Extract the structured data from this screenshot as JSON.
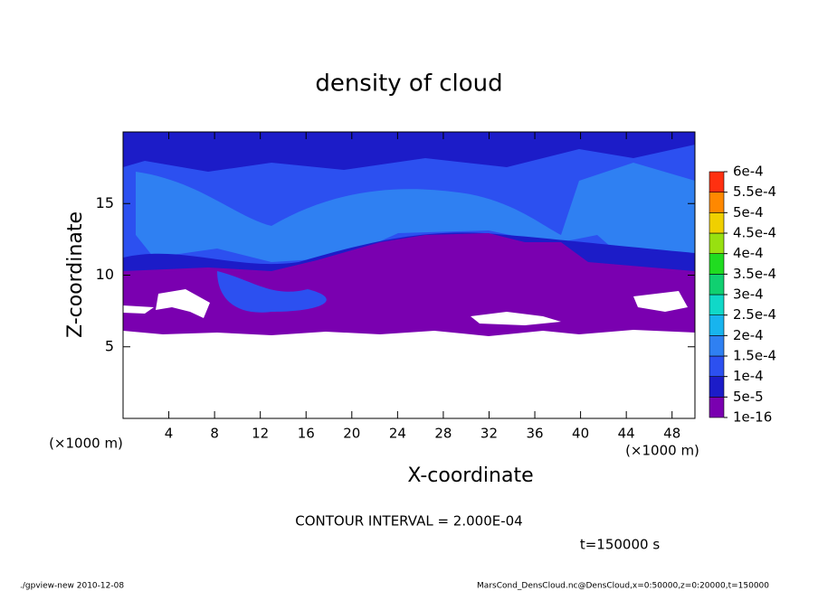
{
  "chart_data": {
    "type": "contour",
    "title": "density of cloud",
    "xlabel": "X-coordinate",
    "ylabel": "Z-coordinate",
    "xunits": "(×1000 m)",
    "yunits": "(×1000 m)",
    "xlim": [
      0,
      50
    ],
    "xticks": [
      4,
      8,
      12,
      16,
      20,
      24,
      28,
      32,
      36,
      40,
      44,
      48
    ],
    "ylim": [
      0,
      20
    ],
    "yticks": [
      5,
      10,
      15
    ],
    "colorbar": {
      "levels": [
        {
          "value": 1e-16,
          "label": "1e-16"
        },
        {
          "value": 5e-05,
          "label": "5e-5"
        },
        {
          "value": 0.0001,
          "label": "1e-4"
        },
        {
          "value": 0.00015,
          "label": "1.5e-4"
        },
        {
          "value": 0.0002,
          "label": "2e-4"
        },
        {
          "value": 0.00025,
          "label": "2.5e-4"
        },
        {
          "value": 0.0003,
          "label": "3e-4"
        },
        {
          "value": 0.00035,
          "label": "3.5e-4"
        },
        {
          "value": 0.0004,
          "label": "4e-4"
        },
        {
          "value": 0.00045,
          "label": "4.5e-4"
        },
        {
          "value": 0.0005,
          "label": "5e-4"
        },
        {
          "value": 0.00055,
          "label": "5.5e-4"
        },
        {
          "value": 0.0006,
          "label": "6e-4"
        }
      ],
      "colors": [
        "#7a00b0",
        "#1c1cc8",
        "#2c50f0",
        "#2f80f2",
        "#18b4ee",
        "#10d8c8",
        "#10d070",
        "#20dc20",
        "#98e010",
        "#f0d000",
        "#ff8800",
        "#ff3010"
      ]
    },
    "annotation": "CONTOUR INTERVAL = 2.000E-04",
    "time_label": "t=150000 s",
    "footer_left": "./gpview-new  2010-12-08",
    "footer_right": "MarsCond_DensCloud.nc@DensCloud,x=0:50000,z=0:20000,t=150000"
  }
}
